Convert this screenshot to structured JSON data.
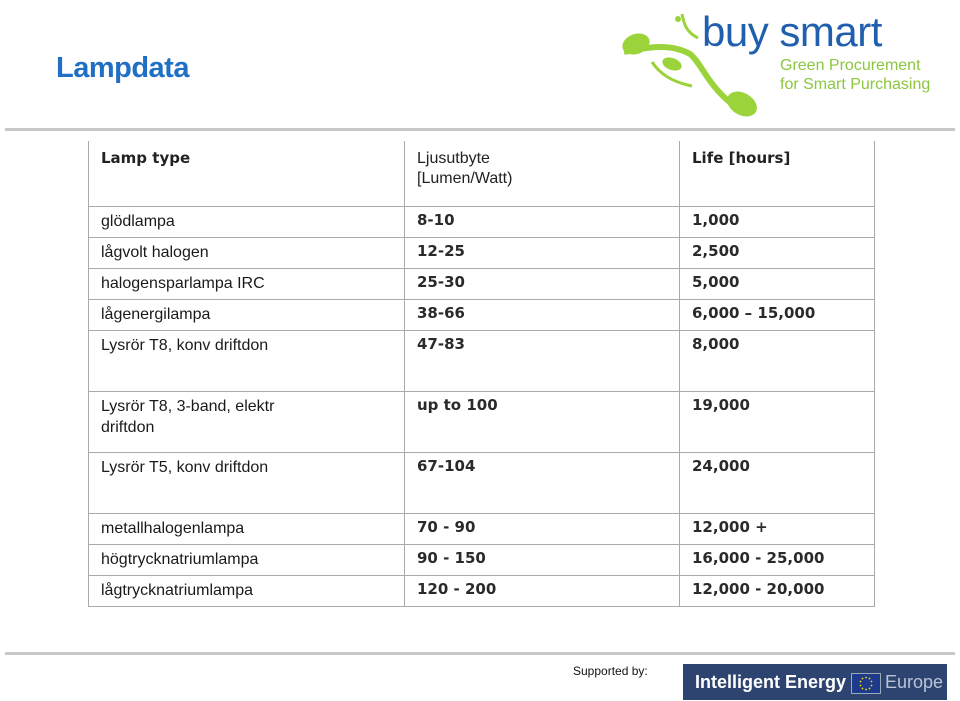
{
  "page": {
    "title": "Lampdata"
  },
  "logo": {
    "brand": "buy smart",
    "tagline_line1": "Green Procurement",
    "tagline_line2": "for Smart Purchasing"
  },
  "table": {
    "headers": {
      "lamp_type": "Lamp type",
      "efficacy_line1": "Ljusutbyte",
      "efficacy_line2": "[Lumen/Watt)",
      "life": "Life [hours]"
    },
    "rows": [
      {
        "name": "glödlampa",
        "efficacy": "8-10",
        "life": "1,000"
      },
      {
        "name": "lågvolt halogen",
        "efficacy": "12-25",
        "life": "2,500"
      },
      {
        "name": "halogensparlampa IRC",
        "efficacy": "25-30",
        "life": "5,000"
      },
      {
        "name": "lågenergilampa",
        "efficacy": "38-66",
        "life": "6,000 – 15,000"
      },
      {
        "name": "Lysrör T8, konv driftdon",
        "efficacy": "47-83",
        "life": "8,000"
      },
      {
        "name": "Lysrör T8, 3-band, elektr driftdon",
        "efficacy": "up to 100",
        "life": "19,000"
      },
      {
        "name": "Lysrör T5, konv driftdon",
        "efficacy": "67-104",
        "life": "24,000"
      },
      {
        "name": "metallhalogenlampa",
        "efficacy": "70 - 90",
        "life": "12,000 +"
      },
      {
        "name": "högtrycknatriumlampa",
        "efficacy": "90 - 150",
        "life": "16,000 - 25,000"
      },
      {
        "name": "lågtrycknatriumlampa",
        "efficacy": "120 - 200",
        "life": "12,000 - 20,000"
      }
    ]
  },
  "footer": {
    "supported_by": "Supported by:",
    "banner_text": "Intelligent Energy",
    "banner_europe": "Europe",
    "banner_color": "#2e4470"
  },
  "colors": {
    "title": "#1f6fc4",
    "brand": "#1f5fae",
    "tagline": "#8cc63f",
    "logo_leaf": "#9bd33a"
  }
}
